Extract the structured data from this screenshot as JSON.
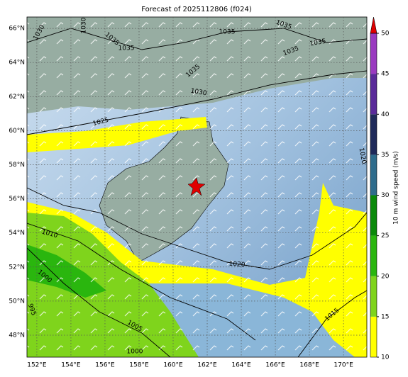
{
  "title": "Forecast of 2025112806 (f024)",
  "map": {
    "lon_lim": [
      151.42,
      171.37
    ],
    "lat_lim": [
      46.71,
      66.67
    ],
    "lon_ticks": [
      {
        "value": 152,
        "label": "152°E"
      },
      {
        "value": 154,
        "label": "154°E"
      },
      {
        "value": 156,
        "label": "156°E"
      },
      {
        "value": 158,
        "label": "158°E"
      },
      {
        "value": 160,
        "label": "160°E"
      },
      {
        "value": 162,
        "label": "162°E"
      },
      {
        "value": 164,
        "label": "164°E"
      },
      {
        "value": 166,
        "label": "166°E"
      },
      {
        "value": 168,
        "label": "168°E"
      },
      {
        "value": 170,
        "label": "170°E"
      }
    ],
    "lat_ticks": [
      {
        "value": 48,
        "label": "48°N"
      },
      {
        "value": 50,
        "label": "50°N"
      },
      {
        "value": 52,
        "label": "52°N"
      },
      {
        "value": 54,
        "label": "54°N"
      },
      {
        "value": 56,
        "label": "56°N"
      },
      {
        "value": 58,
        "label": "58°N"
      },
      {
        "value": 60,
        "label": "60°N"
      },
      {
        "value": 62,
        "label": "62°N"
      },
      {
        "value": 64,
        "label": "64°N"
      },
      {
        "value": 66,
        "label": "66°N"
      }
    ],
    "contour_labels": [
      "1030",
      "1030",
      "1035",
      "1035",
      "1035",
      "1035",
      "1035",
      "1035",
      "1035",
      "1030",
      "1025",
      "1020",
      "1020",
      "1015",
      "1010",
      "1000",
      "995",
      "1005",
      "1000"
    ]
  },
  "colorbar": {
    "label": "10 m wind speed (m/s)",
    "lim": [
      10,
      50
    ],
    "ticks": [
      10,
      15,
      20,
      25,
      30,
      35,
      40,
      45,
      50
    ],
    "colors": [
      "#ffff00",
      "#7fd41c",
      "#2ab60e",
      "#0a8a0a",
      "#2e6c8c",
      "#1f2a5a",
      "#5a2a9a",
      "#9a3ac0"
    ],
    "extend_color": "#e00000"
  }
}
